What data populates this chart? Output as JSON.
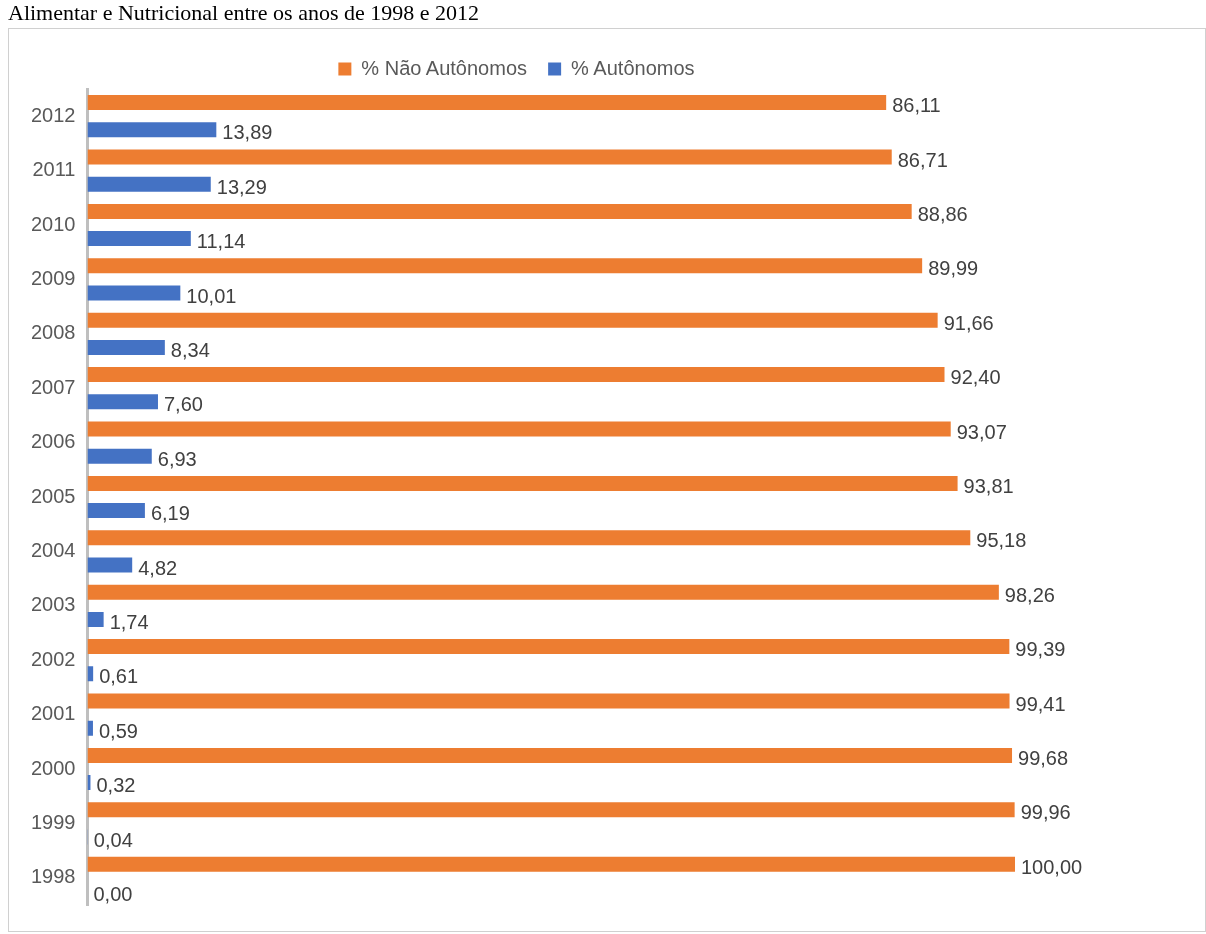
{
  "chart_data": {
    "type": "bar",
    "orientation": "horizontal",
    "title": "Alimentar e Nutricional entre os anos de 1998 e 2012",
    "categories": [
      "2012",
      "2011",
      "2010",
      "2009",
      "2008",
      "2007",
      "2006",
      "2005",
      "2004",
      "2003",
      "2002",
      "2001",
      "2000",
      "1999",
      "1998"
    ],
    "series": [
      {
        "name": "% Não Autônomos",
        "color": "#ed7d31",
        "values": [
          86.11,
          86.71,
          88.86,
          89.99,
          91.66,
          92.4,
          93.07,
          93.81,
          95.18,
          98.26,
          99.39,
          99.41,
          99.68,
          99.96,
          100.0
        ],
        "value_labels": [
          "86,11",
          "86,71",
          "88,86",
          "89,99",
          "91,66",
          "92,40",
          "93,07",
          "93,81",
          "95,18",
          "98,26",
          "99,39",
          "99,41",
          "99,68",
          "99,96",
          "100,00"
        ]
      },
      {
        "name": "% Autônomos",
        "color": "#4472c4",
        "values": [
          13.89,
          13.29,
          11.14,
          10.01,
          8.34,
          7.6,
          6.93,
          6.19,
          4.82,
          1.74,
          0.61,
          0.59,
          0.32,
          0.04,
          0.0
        ],
        "value_labels": [
          "13,89",
          "13,29",
          "11,14",
          "10,01",
          "8,34",
          "7,60",
          "6,93",
          "6,19",
          "4,82",
          "1,74",
          "0,61",
          "0,59",
          "0,32",
          "0,04",
          "0,00"
        ]
      }
    ],
    "legend": "top",
    "grid": false
  }
}
